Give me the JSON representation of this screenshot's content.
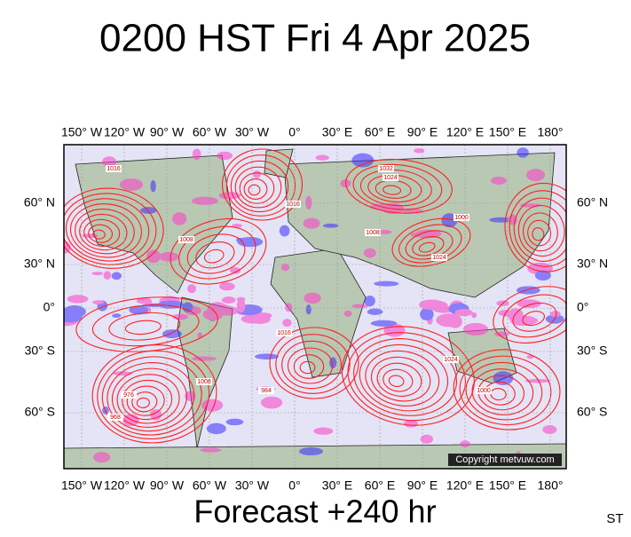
{
  "title": "0200 HST Fri 4 Apr 2025",
  "longitude_labels_top": [
    "150° W",
    "120° W",
    "90° W",
    "60° W",
    "30° W",
    "0°",
    "30° E",
    "60° E",
    "90° E",
    "120° E",
    "150° E",
    "180°"
  ],
  "longitude_labels_bottom": [
    "150° W",
    "120° W",
    "90° W",
    "60° W",
    "30° W",
    "0°",
    "30° E",
    "60° E",
    "90° E",
    "120° E",
    "150° E",
    "180°"
  ],
  "latitude_labels_left": [
    "60° N",
    "30° N",
    "0°",
    "30° S",
    "60° S"
  ],
  "latitude_labels_right": [
    "60° N",
    "30° N",
    "0°",
    "30° S",
    "60° S"
  ],
  "isobar_labels": [
    "1016",
    "1008",
    "1024",
    "1032",
    "1016",
    "1024",
    "1008",
    "1000",
    "1016",
    "984",
    "1008",
    "1000",
    "1024",
    "968",
    "976"
  ],
  "copyright": "Copyright metvuw.com",
  "footer": "Forecast +240 hr",
  "corner": "ST"
}
